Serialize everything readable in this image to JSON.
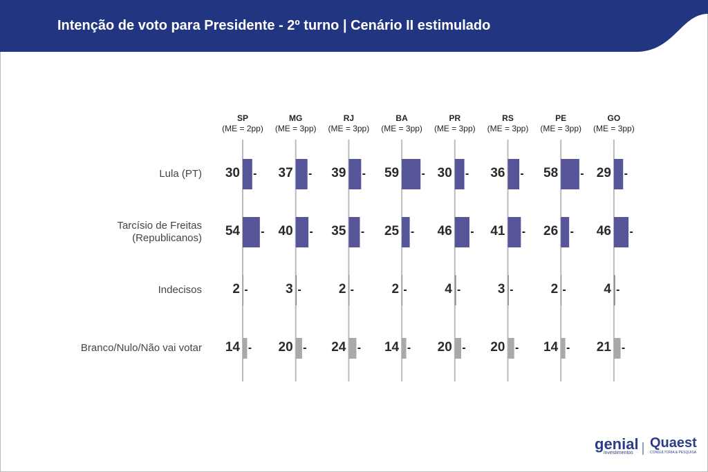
{
  "chart_data": {
    "type": "bar",
    "title": "Intenção de voto para Presidente - 2º turno | Cenário II estimulado",
    "categories": [
      "Lula (PT)",
      "Tarcísio de Freitas (Republicanos)",
      "Indecisos",
      "Branco/Nulo/Não vai votar"
    ],
    "colors": [
      "#56559a",
      "#56559a",
      "#8a8a8a",
      "#a9a9a9"
    ],
    "xlim": [
      0,
      100
    ],
    "series": [
      {
        "name": "SP",
        "note": "(ME = 2pp)",
        "values": [
          30,
          54,
          2,
          14
        ]
      },
      {
        "name": "MG",
        "note": "(ME = 3pp)",
        "values": [
          37,
          40,
          3,
          20
        ]
      },
      {
        "name": "RJ",
        "note": "(ME = 3pp)",
        "values": [
          39,
          35,
          2,
          24
        ]
      },
      {
        "name": "BA",
        "note": "(ME = 3pp)",
        "values": [
          59,
          25,
          2,
          14
        ]
      },
      {
        "name": "PR",
        "note": "(ME = 3pp)",
        "values": [
          30,
          46,
          4,
          20
        ]
      },
      {
        "name": "RS",
        "note": "(ME = 3pp)",
        "values": [
          36,
          41,
          3,
          20
        ]
      },
      {
        "name": "PE",
        "note": "(ME = 3pp)",
        "values": [
          58,
          26,
          2,
          14
        ]
      },
      {
        "name": "GO",
        "note": "(ME = 3pp)",
        "values": [
          29,
          46,
          4,
          21
        ]
      }
    ]
  },
  "logos": {
    "genial": "genial",
    "genial_sub": "investimentos",
    "quaest": "Quaest",
    "quaest_sub": "CONSULTORIA & PESQUISA"
  }
}
